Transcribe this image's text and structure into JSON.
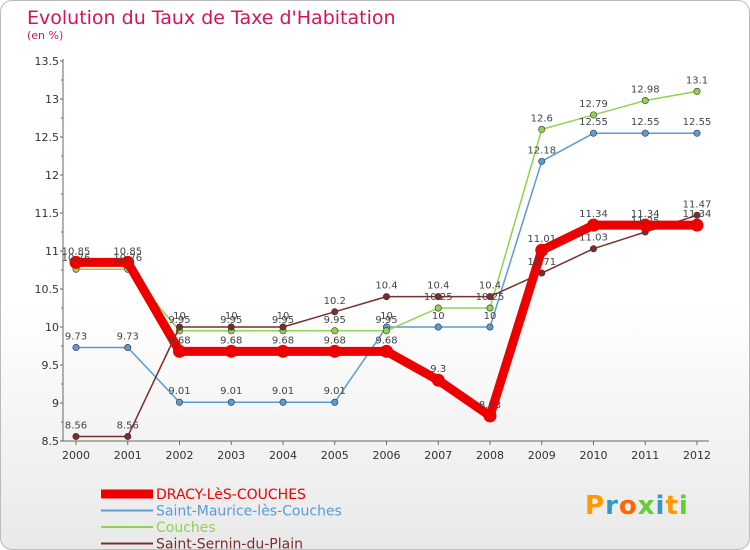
{
  "header": {
    "title": "Evolution du Taux de Taxe d'Habitation",
    "unit": "(en %)"
  },
  "logo": {
    "text": "Proxiti",
    "colors": [
      "#ff9900",
      "#3399cc",
      "#ff6600",
      "#66cc33",
      "#3399cc",
      "#ff9900",
      "#66cc33"
    ]
  },
  "chart_data": {
    "type": "line",
    "title": "Evolution du Taux de Taxe d'Habitation",
    "ylabel": "(en %)",
    "xlabel": "",
    "x": [
      "2000",
      "2001",
      "2002",
      "2003",
      "2004",
      "2005",
      "2006",
      "2007",
      "2008",
      "2009",
      "2010",
      "2011",
      "2012"
    ],
    "ylim": [
      8.5,
      13.5
    ],
    "yticks": [
      "8.5",
      "9",
      "9.5",
      "10",
      "10.5",
      "11",
      "11.5",
      "12",
      "12.5",
      "13",
      "13.5"
    ],
    "grid": false,
    "legend": "bottom-left",
    "series": [
      {
        "name": "DRACY-LèS-COUCHES",
        "color": "#ee0000",
        "values": [
          10.85,
          10.85,
          9.68,
          9.68,
          9.68,
          9.68,
          9.68,
          9.3,
          8.83,
          11.01,
          11.34,
          11.34,
          11.34
        ],
        "labels": [
          "10.85",
          "10.85",
          "9.68",
          "9.68",
          "9.68",
          "9.68",
          "9.68",
          "9.3",
          "8.83",
          "11.01",
          "11.34",
          "11.34",
          "11.34"
        ]
      },
      {
        "name": "Saint-Maurice-lès-Couches",
        "color": "#5b9bd5",
        "values": [
          9.73,
          9.73,
          9.01,
          9.01,
          9.01,
          9.01,
          10,
          10,
          10,
          12.18,
          12.55,
          12.55,
          12.55
        ],
        "labels": [
          "9.73",
          "9.73",
          "9.01",
          "9.01",
          "9.01",
          "9.01",
          "10",
          "10",
          "10",
          "12.18",
          "12.55",
          "12.55",
          "12.55"
        ]
      },
      {
        "name": "Couches",
        "color": "#8fd34f",
        "values": [
          10.76,
          10.76,
          9.95,
          9.95,
          9.95,
          9.95,
          9.95,
          10.25,
          10.25,
          12.6,
          12.79,
          12.98,
          13.1
        ],
        "labels": [
          "10.76",
          "10.76",
          "9.95",
          "9.95",
          "9.95",
          "9.95",
          "9.95",
          "10.25",
          "10.25",
          "12.6",
          "12.79",
          "12.98",
          "13.1"
        ]
      },
      {
        "name": "Saint-Sernin-du-Plain",
        "color": "#7b2d2d",
        "values": [
          8.56,
          8.56,
          10,
          10,
          10,
          10.2,
          10.4,
          10.4,
          10.4,
          10.71,
          11.03,
          11.25,
          11.47
        ],
        "labels": [
          "8.56",
          "8.56",
          "10",
          "10",
          "10",
          "10.2",
          "10.4",
          "10.4",
          "10.4",
          "10.71",
          "11.03",
          "11.25",
          "11.47"
        ]
      }
    ]
  }
}
